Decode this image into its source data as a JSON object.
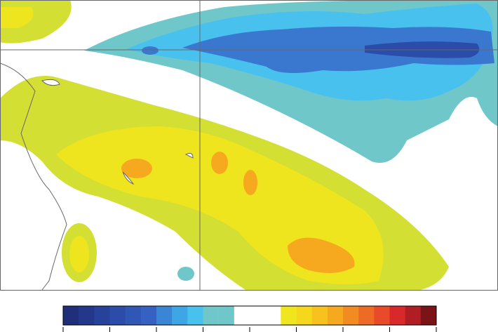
{
  "colorbar": {
    "colors": [
      "#1f2f7a",
      "#23388a",
      "#27429a",
      "#2b4ca8",
      "#3057b5",
      "#3562c2",
      "#3a86d6",
      "#3fa6e6",
      "#49c1ef",
      "#70c7c9",
      "#70c7c9",
      "#ffffff",
      "#ffffff",
      "#ffffff",
      "#f0e61e",
      "#f5d81c",
      "#f7c21d",
      "#f6a81e",
      "#f28b22",
      "#ee6b26",
      "#e84a2a",
      "#d8282a",
      "#b01e24",
      "#7a1416"
    ]
  }
}
